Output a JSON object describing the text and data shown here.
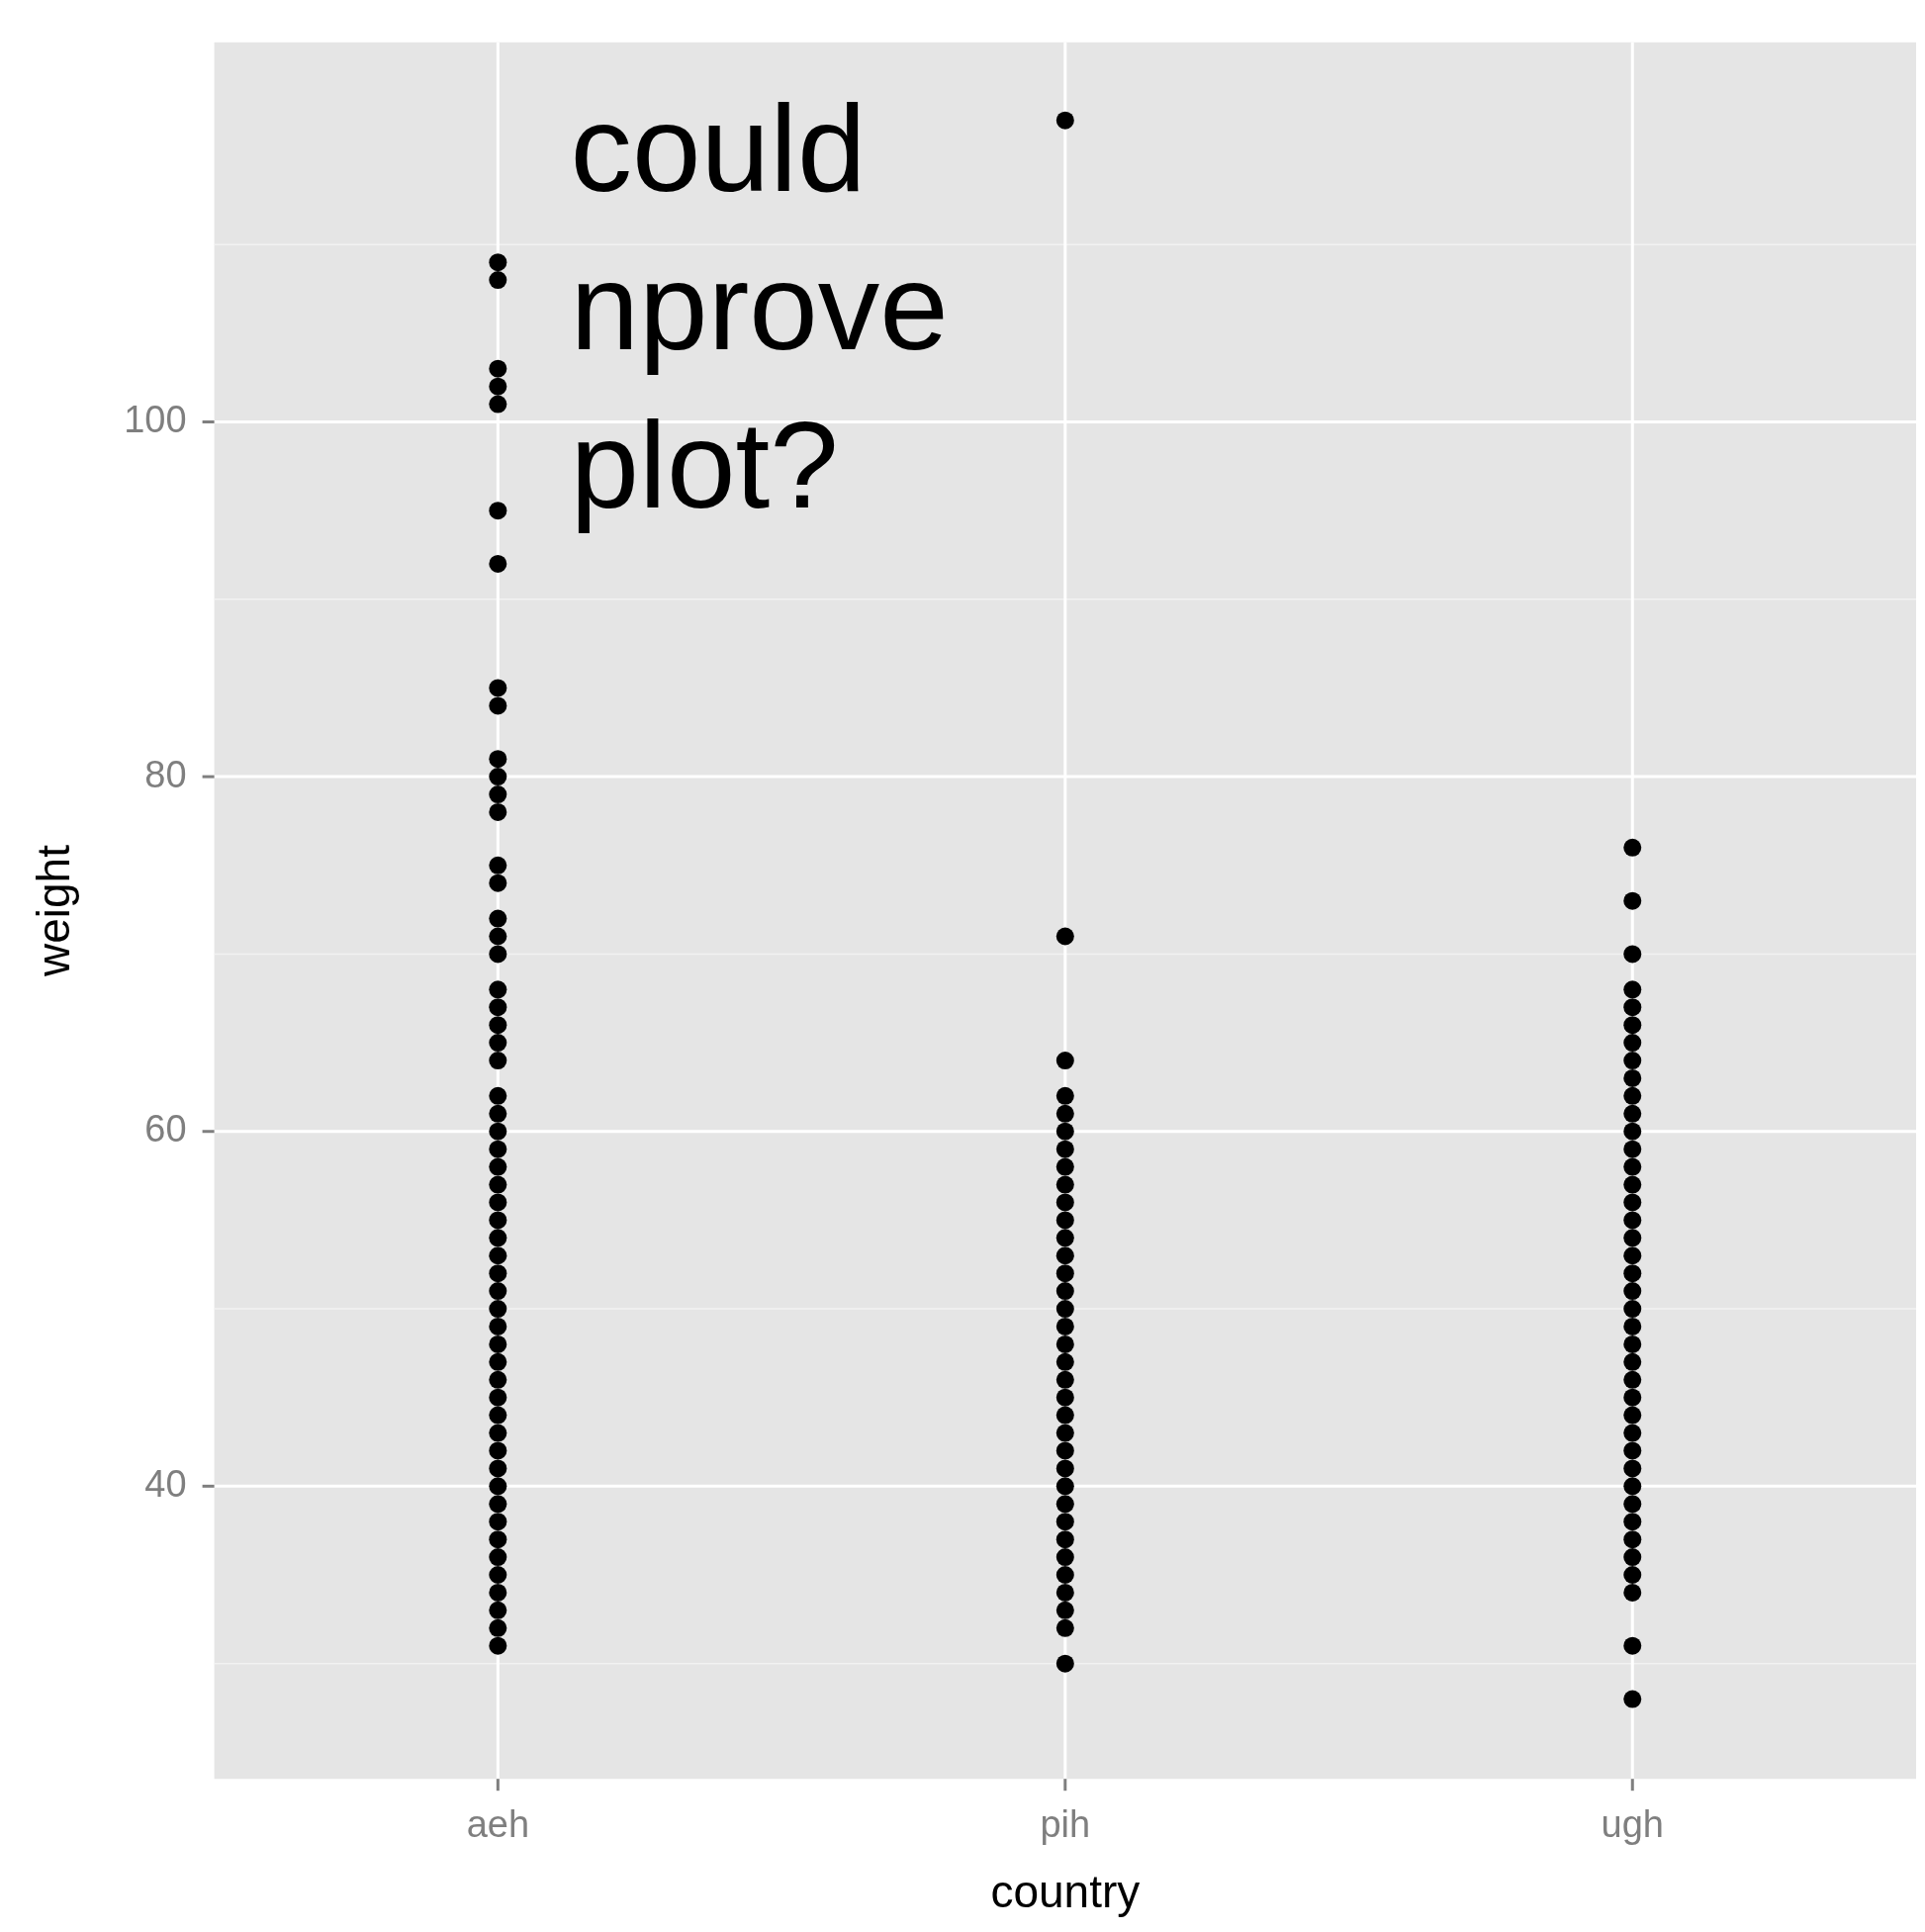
{
  "chart_data": {
    "type": "scatter",
    "xlabel": "country",
    "ylabel": "weight",
    "annotations": [
      "could\nnprove\nplot?"
    ],
    "categories": [
      "aeh",
      "pih",
      "ugh"
    ],
    "ylim": [
      23.5,
      121.4
    ],
    "yticks": [
      {
        "value": 30,
        "label": null
      },
      40,
      {
        "value": 50,
        "label": null
      },
      60,
      {
        "value": 70,
        "label": null
      },
      80,
      {
        "value": 90,
        "label": null
      },
      100,
      {
        "value": 110,
        "label": null
      }
    ],
    "grid": true,
    "legend": false,
    "marker": "circle",
    "series": [
      {
        "color": "#000000",
        "x": [
          "aeh",
          "aeh",
          "aeh",
          "aeh",
          "aeh",
          "aeh",
          "aeh",
          "aeh",
          "aeh",
          "aeh",
          "aeh",
          "aeh",
          "aeh",
          "aeh",
          "aeh",
          "aeh",
          "aeh",
          "aeh",
          "aeh",
          "aeh",
          "aeh",
          "aeh",
          "aeh",
          "aeh",
          "aeh",
          "aeh",
          "aeh",
          "aeh",
          "aeh",
          "aeh",
          "aeh",
          "aeh",
          "aeh",
          "aeh",
          "aeh",
          "aeh",
          "aeh",
          "aeh",
          "aeh",
          "aeh",
          "aeh",
          "aeh",
          "aeh",
          "aeh",
          "aeh",
          "aeh",
          "aeh",
          "aeh",
          "aeh",
          "aeh",
          "aeh",
          "aeh",
          "aeh",
          "aeh",
          "aeh"
        ],
        "values": [
          109,
          108,
          103,
          102,
          101,
          95,
          92,
          85,
          84,
          81,
          80,
          79,
          78,
          75,
          74,
          72,
          71,
          70,
          68,
          67,
          66,
          65,
          64,
          62,
          61,
          60,
          59,
          58,
          57,
          56,
          55,
          54,
          53,
          52,
          51,
          50,
          49,
          48,
          47,
          46,
          45,
          44,
          43,
          42,
          41,
          40,
          39,
          38,
          37,
          36,
          35,
          34,
          33,
          32,
          31
        ]
      },
      {
        "color": "#000000",
        "x": [
          "pih",
          "pih",
          "pih",
          "pih",
          "pih",
          "pih",
          "pih",
          "pih",
          "pih",
          "pih",
          "pih",
          "pih",
          "pih",
          "pih",
          "pih",
          "pih",
          "pih",
          "pih",
          "pih",
          "pih",
          "pih",
          "pih",
          "pih",
          "pih",
          "pih",
          "pih",
          "pih",
          "pih",
          "pih",
          "pih",
          "pih",
          "pih",
          "pih",
          "pih",
          "pih"
        ],
        "values": [
          117,
          71,
          64,
          62,
          61,
          60,
          59,
          58,
          57,
          56,
          55,
          54,
          53,
          52,
          51,
          50,
          49,
          48,
          47,
          46,
          45,
          44,
          43,
          42,
          41,
          40,
          39,
          38,
          37,
          36,
          35,
          34,
          33,
          32,
          30
        ]
      },
      {
        "color": "#000000",
        "x": [
          "ugh",
          "ugh",
          "ugh",
          "ugh",
          "ugh",
          "ugh",
          "ugh",
          "ugh",
          "ugh",
          "ugh",
          "ugh",
          "ugh",
          "ugh",
          "ugh",
          "ugh",
          "ugh",
          "ugh",
          "ugh",
          "ugh",
          "ugh",
          "ugh",
          "ugh",
          "ugh",
          "ugh",
          "ugh",
          "ugh",
          "ugh",
          "ugh",
          "ugh",
          "ugh",
          "ugh",
          "ugh",
          "ugh",
          "ugh",
          "ugh",
          "ugh",
          "ugh",
          "ugh",
          "ugh",
          "ugh"
        ],
        "values": [
          76,
          73,
          70,
          68,
          67,
          66,
          65,
          64,
          63,
          62,
          61,
          60,
          59,
          58,
          57,
          56,
          55,
          54,
          53,
          52,
          51,
          50,
          49,
          48,
          47,
          46,
          45,
          44,
          43,
          42,
          41,
          40,
          39,
          38,
          37,
          36,
          35,
          34,
          31,
          28
        ]
      }
    ]
  }
}
